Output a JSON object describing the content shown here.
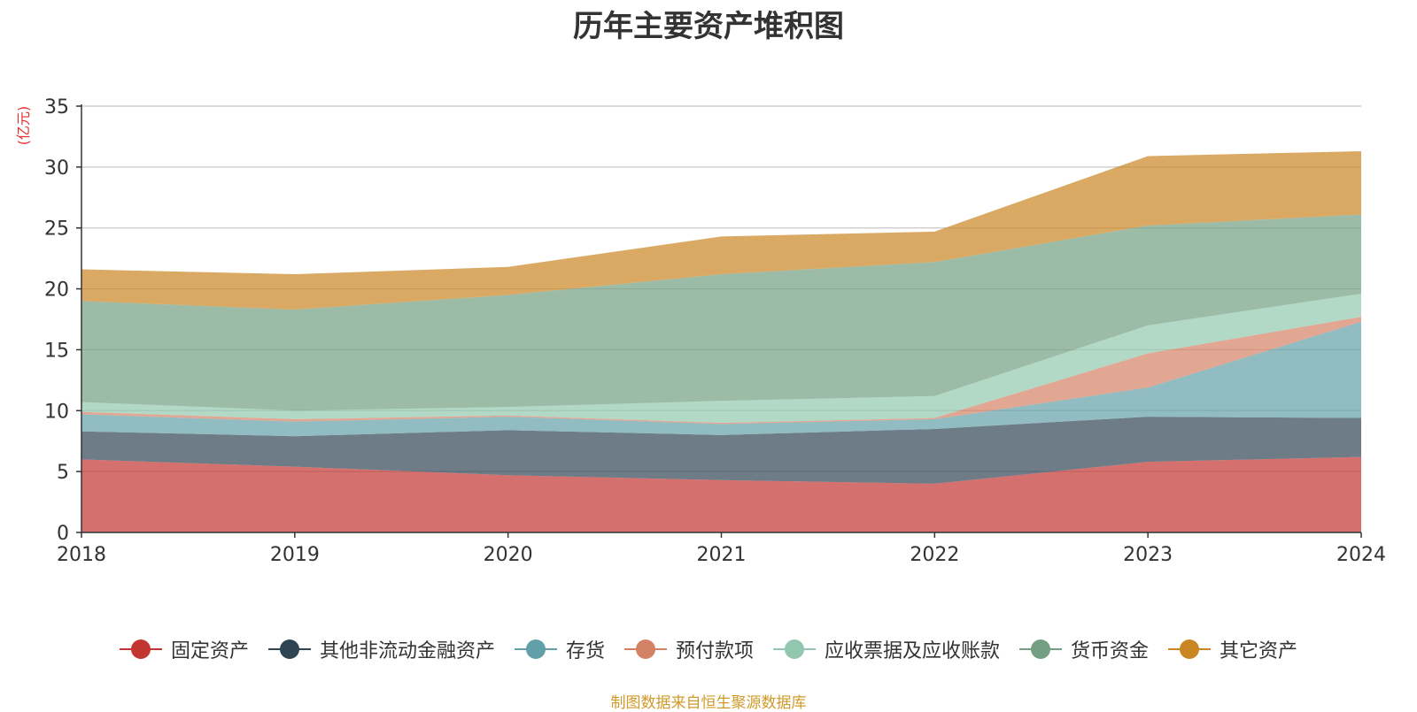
{
  "chart_data": {
    "type": "area",
    "stacked": true,
    "title": "历年主要资产堆积图",
    "ylabel": "(亿元)",
    "xlabel": "",
    "ylim": [
      0,
      35
    ],
    "yticks": [
      "0",
      "5",
      "10",
      "15",
      "20",
      "25",
      "30",
      "35"
    ],
    "categories": [
      "2018",
      "2019",
      "2020",
      "2021",
      "2022",
      "2023",
      "2024"
    ],
    "series": [
      {
        "name": "固定资产",
        "color": "#c23531",
        "values": [
          6.0,
          5.4,
          4.7,
          4.3,
          4.0,
          5.8,
          6.2
        ]
      },
      {
        "name": "其他非流动金融资产",
        "color": "#2f4554",
        "values": [
          2.3,
          2.5,
          3.7,
          3.7,
          4.5,
          3.7,
          3.2
        ]
      },
      {
        "name": "存货",
        "color": "#61a0a8",
        "values": [
          1.4,
          1.2,
          1.1,
          0.9,
          0.8,
          2.4,
          7.9
        ]
      },
      {
        "name": "预付款项",
        "color": "#d48265",
        "values": [
          0.2,
          0.2,
          0.1,
          0.1,
          0.1,
          2.8,
          0.4
        ]
      },
      {
        "name": "应收票据及应收账款",
        "color": "#91c7ae",
        "values": [
          0.8,
          0.7,
          0.7,
          1.8,
          1.8,
          2.3,
          1.9
        ]
      },
      {
        "name": "货币资金",
        "color": "#749f83",
        "values": [
          8.3,
          8.3,
          9.2,
          10.4,
          11.0,
          8.2,
          6.5
        ]
      },
      {
        "name": "其它资产",
        "color": "#ca8622",
        "values": [
          2.6,
          2.9,
          2.3,
          3.1,
          2.5,
          5.7,
          5.2
        ]
      }
    ],
    "grid": true,
    "legend_position": "bottom"
  },
  "footer": {
    "source": "制图数据来自恒生聚源数据库"
  }
}
